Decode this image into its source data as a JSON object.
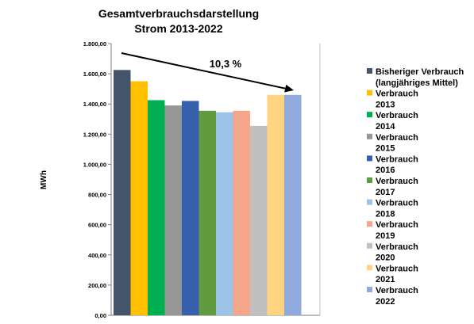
{
  "chart_data": {
    "type": "bar",
    "title_line1": "Gesamtverbrauchsdarstellung",
    "title_line2": "Strom 2013-2022",
    "ylabel": "MWh",
    "xlabel": "",
    "ylim": [
      0,
      1800
    ],
    "yticks": [
      "0,00",
      "200,00",
      "400,00",
      "600,00",
      "800,00",
      "1.000,00",
      "1.200,00",
      "1.400,00",
      "1.600,00",
      "1.800,00"
    ],
    "grid": false,
    "legend_position": "right",
    "trend_label": "10,3 %",
    "series": [
      {
        "name_lines": [
          "Bisheriger Verbrauch",
          "(langjähriges Mittel)"
        ],
        "value": 1625,
        "color": "#44546a"
      },
      {
        "name_lines": [
          "Verbrauch",
          "2013"
        ],
        "value": 1550,
        "color": "#ffc000"
      },
      {
        "name_lines": [
          "Verbrauch",
          "2014"
        ],
        "value": 1425,
        "color": "#00b050"
      },
      {
        "name_lines": [
          "Verbrauch",
          "2015"
        ],
        "value": 1390,
        "color": "#969696"
      },
      {
        "name_lines": [
          "Verbrauch",
          "2016"
        ],
        "value": 1420,
        "color": "#365fac"
      },
      {
        "name_lines": [
          "Verbrauch",
          "2017"
        ],
        "value": 1355,
        "color": "#629a3f"
      },
      {
        "name_lines": [
          "Verbrauch",
          "2018"
        ],
        "value": 1345,
        "color": "#9dc3e6"
      },
      {
        "name_lines": [
          "Verbrauch",
          "2019"
        ],
        "value": 1355,
        "color": "#f4a58a"
      },
      {
        "name_lines": [
          "Verbrauch",
          "2020"
        ],
        "value": 1255,
        "color": "#c0c0c0"
      },
      {
        "name_lines": [
          "Verbrauch",
          "2021"
        ],
        "value": 1460,
        "color": "#ffd480"
      },
      {
        "name_lines": [
          "Verbrauch",
          "2022"
        ],
        "value": 1460,
        "color": "#8faadc"
      }
    ]
  }
}
